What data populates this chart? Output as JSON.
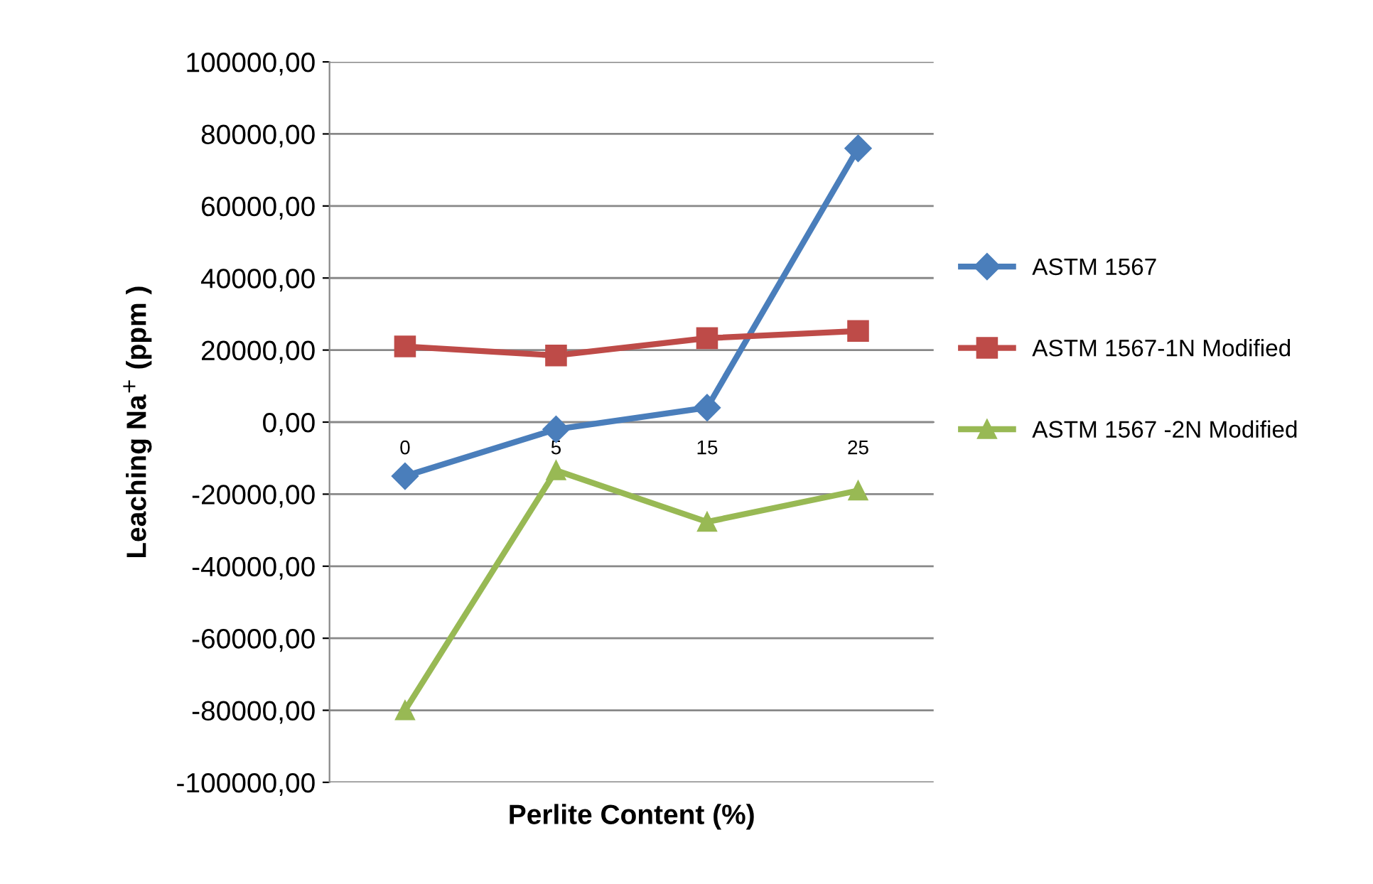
{
  "chart_data": {
    "type": "line",
    "xlabel": "Perlite Content (%)",
    "ylabel": "Leaching Na$^{+}$ (ppm )",
    "categories": [
      "0",
      "5",
      "15",
      "25"
    ],
    "series": [
      {
        "name": "ASTM 1567",
        "color": "#4a7ebb",
        "marker": "diamond",
        "values": [
          -15000,
          -2000,
          4000,
          76000
        ]
      },
      {
        "name": "ASTM 1567-1N Modified",
        "color": "#be4b48",
        "marker": "square",
        "values": [
          21000,
          18500,
          23300,
          25300
        ]
      },
      {
        "name": "ASTM 1567 -2N Modified",
        "color": "#98b954",
        "marker": "triangle",
        "values": [
          -80000,
          -13400,
          -27700,
          -19000
        ]
      }
    ],
    "ylim": [
      -100000,
      100000
    ],
    "yticks": [
      {
        "value": -100000,
        "label": "-100000,00"
      },
      {
        "value": -80000,
        "label": "-80000,00"
      },
      {
        "value": -60000,
        "label": "-60000,00"
      },
      {
        "value": -40000,
        "label": "-40000,00"
      },
      {
        "value": -20000,
        "label": "-20000,00"
      },
      {
        "value": 0,
        "label": "0,00"
      },
      {
        "value": 20000,
        "label": "20000,00"
      },
      {
        "value": 40000,
        "label": "40000,00"
      },
      {
        "value": 60000,
        "label": "60000,00"
      },
      {
        "value": 80000,
        "label": "80000,00"
      },
      {
        "value": 100000,
        "label": "100000,00"
      }
    ],
    "grid": "y",
    "legend": "right",
    "line_style": "solid"
  }
}
